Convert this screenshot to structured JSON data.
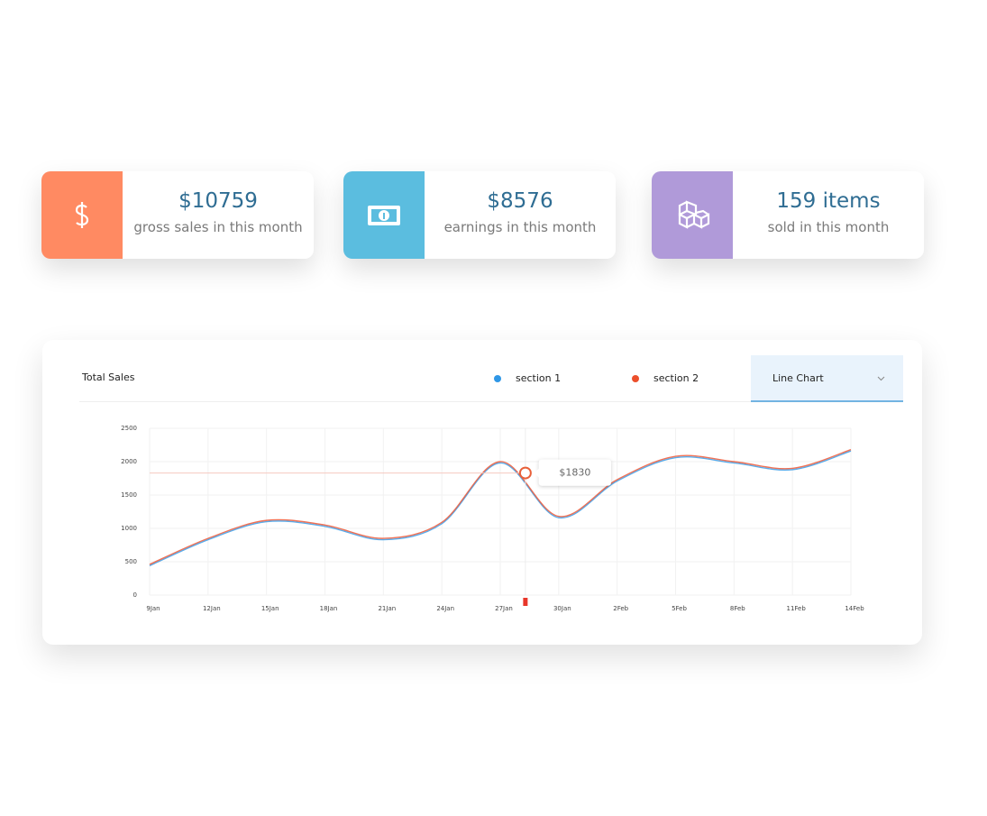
{
  "cards": [
    {
      "value": "$10759",
      "label": "gross sales in this month"
    },
    {
      "value": "$8576",
      "label": "earnings in this month"
    },
    {
      "value": "159 items",
      "label": "sold in this month"
    }
  ],
  "panel": {
    "dropdown": "Line Chart"
  },
  "chart_data": {
    "type": "line",
    "title": "Total Sales",
    "categories": [
      "9Jan",
      "12Jan",
      "15Jan",
      "18Jan",
      "21Jan",
      "24Jan",
      "27Jan",
      "30Jan",
      "2Feb",
      "5Feb",
      "8Feb",
      "11Feb",
      "14Feb"
    ],
    "series": [
      {
        "name": "section 1",
        "color": "#2f97e6",
        "values": [
          440,
          830,
          1100,
          1030,
          830,
          1070,
          1980,
          1160,
          1710,
          2060,
          1980,
          1880,
          2160
        ]
      },
      {
        "name": "section 2",
        "color": "#ec4f2c",
        "values": [
          460,
          850,
          1120,
          1050,
          850,
          1090,
          2000,
          1180,
          1730,
          2080,
          2000,
          1900,
          2180
        ]
      }
    ],
    "ylim": [
      0,
      2500
    ],
    "yticks": [
      0,
      500,
      1000,
      1500,
      2000,
      2500
    ],
    "grid": true,
    "annotation": {
      "value": 1830,
      "label": "$1830"
    }
  }
}
